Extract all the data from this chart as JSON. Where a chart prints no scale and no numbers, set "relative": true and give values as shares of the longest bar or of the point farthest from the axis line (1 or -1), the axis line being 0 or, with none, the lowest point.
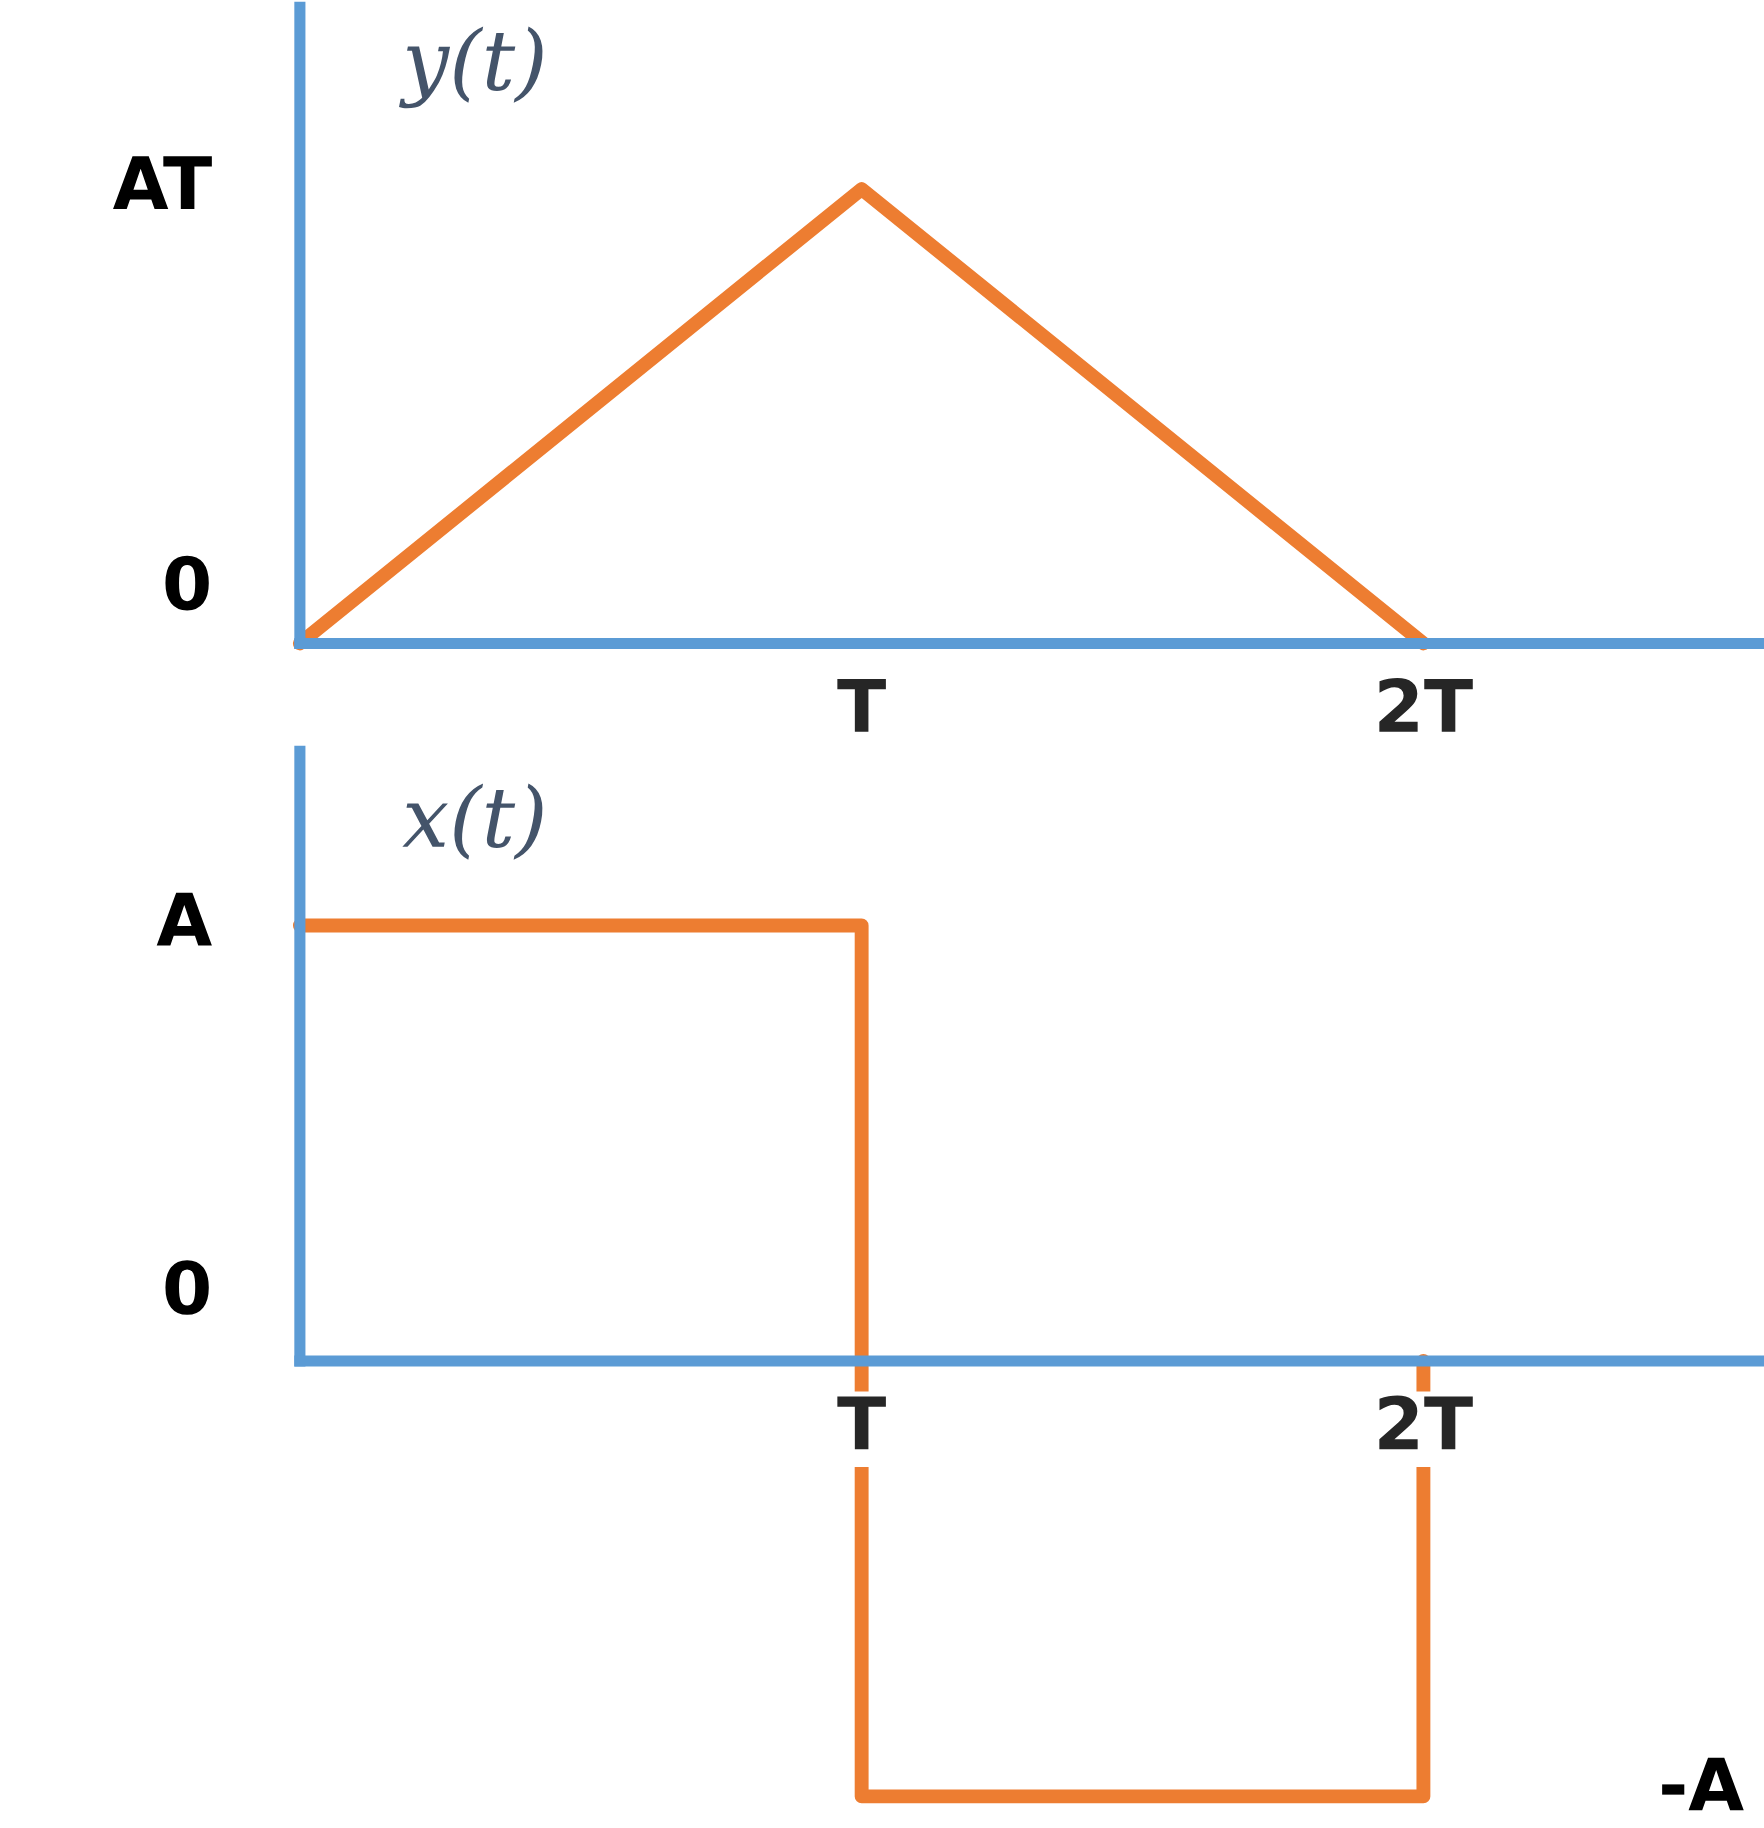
{
  "chart_data": [
    {
      "type": "line",
      "title": "y(t)",
      "relative": true,
      "categories": [
        null,
        "T",
        "2T"
      ],
      "annotations": [
        "0",
        "AT"
      ],
      "grid": false,
      "series": [
        {
          "color": "#ed7d31",
          "values": [
            0,
            1,
            0
          ]
        }
      ]
    },
    {
      "type": "step",
      "title": "x(t)",
      "relative": true,
      "categories": [
        null,
        "T",
        "2T"
      ],
      "annotations": [
        "0",
        "A",
        "-A"
      ],
      "grid": false,
      "series": [
        {
          "color": "#ed7d31",
          "values": [
            1,
            -1,
            0
          ]
        }
      ]
    }
  ]
}
